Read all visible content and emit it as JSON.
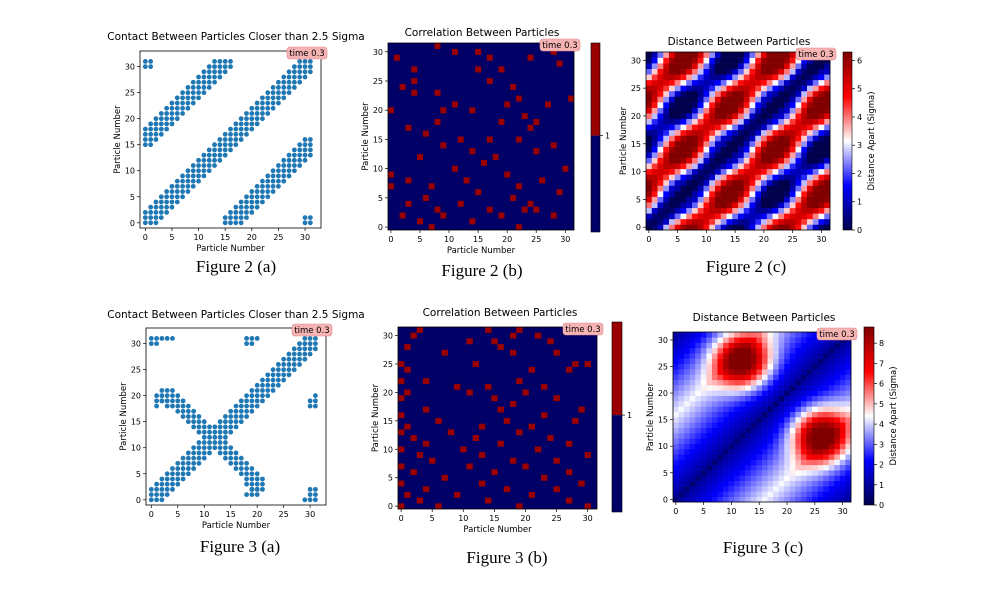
{
  "chart_data": [
    {
      "id": "fig2a",
      "type": "scatter",
      "title": "Contact Between Particles Closer than 2.5 Sigma",
      "xlabel": "Particle Number",
      "ylabel": "Particle Number",
      "xlim": [
        -1,
        33
      ],
      "ylim": [
        -1,
        33
      ],
      "xticks": [
        0,
        5,
        10,
        15,
        20,
        25,
        30
      ],
      "yticks": [
        0,
        5,
        10,
        15,
        20,
        25,
        30
      ],
      "color": "#1f77b4",
      "annotation": "time 0.3",
      "caption": "Figure 2 (a)",
      "pattern": "diagonal band of contacts along i≈j (width ±2) plus off-diagonal bands near (x≈0-10, y≈16-31) and (x≈16-31, y≈0-17)",
      "bands": [
        {
          "from": [
            0,
            0
          ],
          "to": [
            31,
            31
          ],
          "halfwidth": 2
        },
        {
          "from": [
            0,
            16
          ],
          "to": [
            15,
            31
          ],
          "halfwidth": 2
        },
        {
          "from": [
            16,
            0
          ],
          "to": [
            31,
            15
          ],
          "halfwidth": 2
        }
      ]
    },
    {
      "id": "fig2b",
      "type": "heatmap",
      "title": "Correlation Between Particles",
      "xlabel": "Particle Number",
      "ylabel": "Particle Number",
      "xlim": [
        0,
        32
      ],
      "ylim": [
        0,
        32
      ],
      "xticks": [
        0,
        5,
        10,
        15,
        20,
        25,
        30
      ],
      "yticks": [
        0,
        5,
        10,
        15,
        20,
        25,
        30
      ],
      "colors": [
        "#000066",
        "#990000"
      ],
      "colorbar_ticks": [
        1
      ],
      "annotation": "time 0.3",
      "caption": "Figure 2 (b)",
      "cells_value_1": [
        [
          8,
          31
        ],
        [
          11,
          30
        ],
        [
          15,
          30
        ],
        [
          28,
          30
        ],
        [
          1,
          29
        ],
        [
          17,
          29
        ],
        [
          24,
          29
        ],
        [
          29,
          28
        ],
        [
          4,
          27
        ],
        [
          15,
          27
        ],
        [
          19,
          27
        ],
        [
          4,
          25
        ],
        [
          17,
          25
        ],
        [
          2,
          24
        ],
        [
          21,
          24
        ],
        [
          4,
          23
        ],
        [
          8,
          23
        ],
        [
          22,
          22
        ],
        [
          31,
          22
        ],
        [
          11,
          21
        ],
        [
          20,
          21
        ],
        [
          27,
          21
        ],
        [
          0,
          20
        ],
        [
          9,
          20
        ],
        [
          14,
          20
        ],
        [
          23,
          19
        ],
        [
          8,
          18
        ],
        [
          19,
          18
        ],
        [
          25,
          18
        ],
        [
          3,
          17
        ],
        [
          24,
          17
        ],
        [
          6,
          16
        ],
        [
          12,
          15
        ],
        [
          17,
          15
        ],
        [
          22,
          15
        ],
        [
          9,
          14
        ],
        [
          28,
          14
        ],
        [
          14,
          13
        ],
        [
          25,
          13
        ],
        [
          5,
          12
        ],
        [
          18,
          12
        ],
        [
          16,
          11
        ],
        [
          11,
          10
        ],
        [
          30,
          10
        ],
        [
          0,
          9
        ],
        [
          20,
          9
        ],
        [
          3,
          8
        ],
        [
          13,
          8
        ],
        [
          26,
          8
        ],
        [
          0,
          7
        ],
        [
          7,
          7
        ],
        [
          22,
          7
        ],
        [
          15,
          6
        ],
        [
          29,
          6
        ],
        [
          6,
          5
        ],
        [
          21,
          5
        ],
        [
          3,
          4
        ],
        [
          12,
          4
        ],
        [
          24,
          4
        ],
        [
          8,
          3
        ],
        [
          17,
          3
        ],
        [
          23,
          3
        ],
        [
          25,
          3
        ],
        [
          2,
          2
        ],
        [
          9,
          2
        ],
        [
          19,
          2
        ],
        [
          28,
          2
        ],
        [
          5,
          1
        ],
        [
          14,
          1
        ],
        [
          7,
          0
        ],
        [
          22,
          0
        ]
      ]
    },
    {
      "id": "fig2c",
      "type": "heatmap",
      "title": "Distance Between Particles",
      "xlabel": "",
      "ylabel": "Particle Number",
      "xlim": [
        0,
        32
      ],
      "ylim": [
        0,
        32
      ],
      "xticks": [
        0,
        5,
        10,
        15,
        20,
        25,
        30
      ],
      "yticks": [
        0,
        5,
        10,
        15,
        20,
        25,
        30
      ],
      "colormap": "seismic",
      "vmin": 0,
      "vmax": 6.3,
      "colorbar_label": "Distance Apart (Sigma)",
      "colorbar_ticks": [
        0,
        1,
        2,
        3,
        4,
        5,
        6
      ],
      "annotation": "time 0.3",
      "caption": "Figure 2 (c)",
      "pattern": "distance ≈ 0 on the diagonal, rising in a wavy pattern with period ≈16 particles to ≈6 in off-diagonal lobes"
    },
    {
      "id": "fig3a",
      "type": "scatter",
      "title": "Contact Between Particles Closer than 2.5 Sigma",
      "xlabel": "Particle Number",
      "ylabel": "Particle Number",
      "xlim": [
        -1,
        33
      ],
      "ylim": [
        -1,
        33
      ],
      "xticks": [
        0,
        5,
        10,
        15,
        20,
        25,
        30
      ],
      "yticks": [
        0,
        5,
        10,
        15,
        20,
        25,
        30
      ],
      "color": "#1f77b4",
      "annotation": "time 0.3",
      "caption": "Figure 3 (a)",
      "pattern": "diagonal band i≈j plus an anti-diagonal cross near (12,12), corner clusters near (1,31), (31,1), (18,30), (30,18)",
      "bands": [
        {
          "from": [
            0,
            0
          ],
          "to": [
            31,
            31
          ],
          "halfwidth": 2
        },
        {
          "from": [
            3,
            20
          ],
          "to": [
            12,
            12
          ],
          "halfwidth": 2
        },
        {
          "from": [
            12,
            12
          ],
          "to": [
            20,
            3
          ],
          "halfwidth": 2
        }
      ]
    },
    {
      "id": "fig3b",
      "type": "heatmap",
      "title": "Correlation Between Particles",
      "xlabel": "Particle Number",
      "ylabel": "Particle Number",
      "xlim": [
        0,
        32
      ],
      "ylim": [
        0,
        32
      ],
      "xticks": [
        0,
        5,
        10,
        15,
        20,
        25,
        30
      ],
      "yticks": [
        0,
        5,
        10,
        15,
        20,
        25,
        30
      ],
      "colors": [
        "#000066",
        "#990000"
      ],
      "colorbar_ticks": [
        1
      ],
      "annotation": "time 0.3",
      "caption": "Figure 3 (b)",
      "cells_value_1": [
        [
          3,
          31
        ],
        [
          14,
          31
        ],
        [
          19,
          31
        ],
        [
          29,
          31
        ],
        [
          2,
          30
        ],
        [
          18,
          30
        ],
        [
          22,
          30
        ],
        [
          11,
          29
        ],
        [
          15,
          29
        ],
        [
          24,
          29
        ],
        [
          1,
          28
        ],
        [
          16,
          28
        ],
        [
          7,
          27
        ],
        [
          18,
          27
        ],
        [
          25,
          27
        ],
        [
          0,
          25
        ],
        [
          12,
          25
        ],
        [
          28,
          25
        ],
        [
          30,
          25
        ],
        [
          1,
          24
        ],
        [
          21,
          24
        ],
        [
          27,
          24
        ],
        [
          0,
          22
        ],
        [
          4,
          22
        ],
        [
          19,
          22
        ],
        [
          9,
          21
        ],
        [
          14,
          21
        ],
        [
          23,
          21
        ],
        [
          1,
          20
        ],
        [
          11,
          20
        ],
        [
          20,
          20
        ],
        [
          0,
          19
        ],
        [
          15,
          19
        ],
        [
          25,
          19
        ],
        [
          18,
          18
        ],
        [
          4,
          17
        ],
        [
          16,
          17
        ],
        [
          29,
          17
        ],
        [
          0,
          16
        ],
        [
          23,
          16
        ],
        [
          6,
          15
        ],
        [
          17,
          15
        ],
        [
          28,
          15
        ],
        [
          1,
          14
        ],
        [
          13,
          14
        ],
        [
          21,
          14
        ],
        [
          0,
          13
        ],
        [
          8,
          13
        ],
        [
          19,
          13
        ],
        [
          2,
          12
        ],
        [
          12,
          12
        ],
        [
          24,
          12
        ],
        [
          4,
          11
        ],
        [
          16,
          11
        ],
        [
          27,
          11
        ],
        [
          0,
          10
        ],
        [
          10,
          10
        ],
        [
          22,
          10
        ],
        [
          3,
          9
        ],
        [
          13,
          9
        ],
        [
          30,
          9
        ],
        [
          5,
          8
        ],
        [
          18,
          8
        ],
        [
          25,
          8
        ],
        [
          0,
          7
        ],
        [
          11,
          7
        ],
        [
          20,
          7
        ],
        [
          2,
          6
        ],
        [
          15,
          6
        ],
        [
          27,
          6
        ],
        [
          7,
          5
        ],
        [
          23,
          5
        ],
        [
          0,
          4
        ],
        [
          13,
          4
        ],
        [
          29,
          4
        ],
        [
          4,
          3
        ],
        [
          17,
          3
        ],
        [
          25,
          3
        ],
        [
          1,
          2
        ],
        [
          9,
          2
        ],
        [
          21,
          2
        ],
        [
          3,
          1
        ],
        [
          14,
          1
        ],
        [
          27,
          1
        ],
        [
          0,
          0
        ],
        [
          6,
          0
        ],
        [
          19,
          0
        ],
        [
          30,
          0
        ]
      ]
    },
    {
      "id": "fig3c",
      "type": "heatmap",
      "title": "Distance Between Particles",
      "xlabel": "",
      "ylabel": "Particle Number",
      "xlim": [
        0,
        32
      ],
      "ylim": [
        0,
        32
      ],
      "xticks": [
        0,
        5,
        10,
        15,
        20,
        25,
        30
      ],
      "yticks": [
        0,
        5,
        10,
        15,
        20,
        25,
        30
      ],
      "colormap": "seismic",
      "vmin": 0,
      "vmax": 8.8,
      "colorbar_label": "Distance Apart (Sigma)",
      "colorbar_ticks": [
        0,
        1,
        2,
        3,
        4,
        5,
        6,
        7,
        8
      ],
      "annotation": "time 0.3",
      "caption": "Figure 3 (c)",
      "pattern": "distance ≈ 0 on the diagonal, two off-diagonal maxima (≈8) centered near (12,26) and (26,12)",
      "maxima": [
        [
          12,
          26
        ],
        [
          26,
          12
        ]
      ]
    }
  ]
}
